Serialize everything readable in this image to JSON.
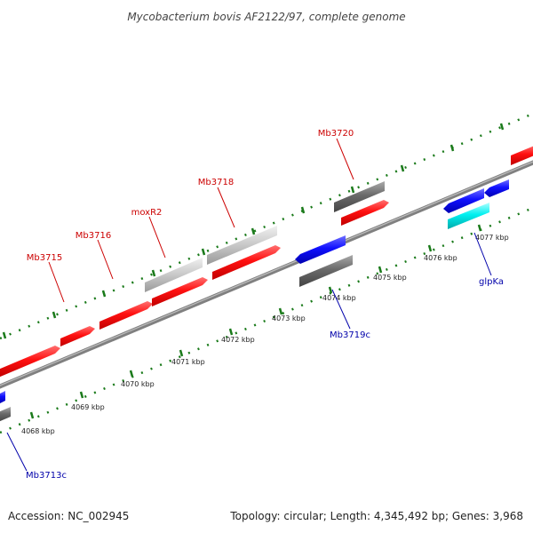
{
  "title": "Mycobacterium bovis AF2122/97, complete genome",
  "footer": {
    "accession": "Accession: NC_002945",
    "topology": "Topology: circular; Length: 4,345,492 bp; Genes: 3,968"
  },
  "colors": {
    "forward_gene": "#ff0000",
    "reverse_gene": "#0000ff",
    "pseudo_dark": "#666666",
    "pseudo_light": "#cccccc",
    "rna_cyan": "#00ffff",
    "backbone": "#808080",
    "tick": "#1a7a1a",
    "label_forward": "#cc0000",
    "label_reverse": "#0000aa"
  },
  "scale_labels": [
    "4068 kbp",
    "4069 kbp",
    "4070 kbp",
    "4071 kbp",
    "4072 kbp",
    "4073 kbp",
    "4074 kbp",
    "4075 kbp",
    "4076 kbp",
    "4077 kbp"
  ],
  "gene_labels": [
    {
      "text": "Mb3715",
      "strand": "forward"
    },
    {
      "text": "Mb3716",
      "strand": "forward"
    },
    {
      "text": "moxR2",
      "strand": "forward"
    },
    {
      "text": "Mb3718",
      "strand": "forward"
    },
    {
      "text": "Mb3720",
      "strand": "forward"
    },
    {
      "text": "Mb3719c",
      "strand": "reverse"
    },
    {
      "text": "glpKa",
      "strand": "reverse"
    },
    {
      "text": "Mb3713c",
      "strand": "reverse"
    }
  ]
}
